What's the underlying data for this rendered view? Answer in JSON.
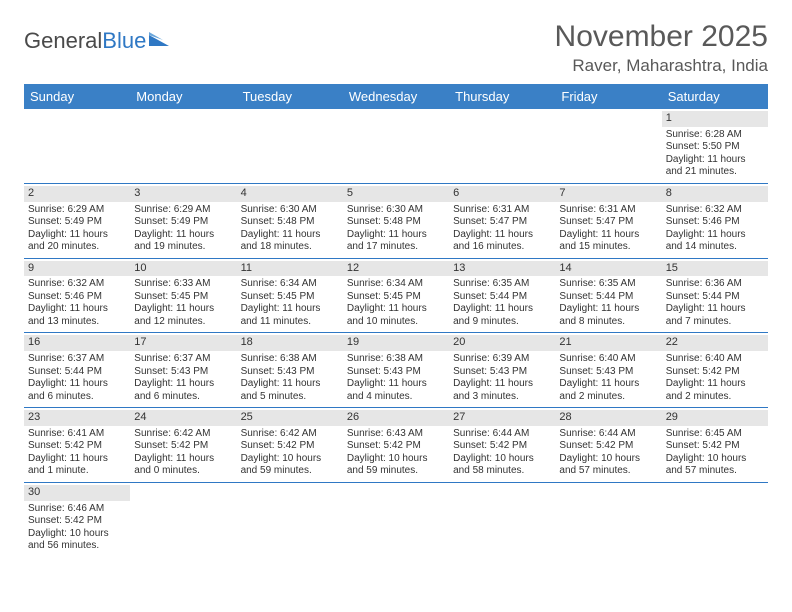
{
  "logo": {
    "text1": "General",
    "text2": "Blue"
  },
  "title": "November 2025",
  "location": "Raver, Maharashtra, India",
  "colors": {
    "header_bg": "#3a80c6",
    "header_text": "#ffffff",
    "daynum_bg": "#e6e6e6",
    "border": "#2f78c4",
    "title_color": "#595959"
  },
  "dayNames": [
    "Sunday",
    "Monday",
    "Tuesday",
    "Wednesday",
    "Thursday",
    "Friday",
    "Saturday"
  ],
  "weeks": [
    [
      null,
      null,
      null,
      null,
      null,
      null,
      {
        "n": "1",
        "sr": "Sunrise: 6:28 AM",
        "ss": "Sunset: 5:50 PM",
        "d1": "Daylight: 11 hours",
        "d2": "and 21 minutes."
      }
    ],
    [
      {
        "n": "2",
        "sr": "Sunrise: 6:29 AM",
        "ss": "Sunset: 5:49 PM",
        "d1": "Daylight: 11 hours",
        "d2": "and 20 minutes."
      },
      {
        "n": "3",
        "sr": "Sunrise: 6:29 AM",
        "ss": "Sunset: 5:49 PM",
        "d1": "Daylight: 11 hours",
        "d2": "and 19 minutes."
      },
      {
        "n": "4",
        "sr": "Sunrise: 6:30 AM",
        "ss": "Sunset: 5:48 PM",
        "d1": "Daylight: 11 hours",
        "d2": "and 18 minutes."
      },
      {
        "n": "5",
        "sr": "Sunrise: 6:30 AM",
        "ss": "Sunset: 5:48 PM",
        "d1": "Daylight: 11 hours",
        "d2": "and 17 minutes."
      },
      {
        "n": "6",
        "sr": "Sunrise: 6:31 AM",
        "ss": "Sunset: 5:47 PM",
        "d1": "Daylight: 11 hours",
        "d2": "and 16 minutes."
      },
      {
        "n": "7",
        "sr": "Sunrise: 6:31 AM",
        "ss": "Sunset: 5:47 PM",
        "d1": "Daylight: 11 hours",
        "d2": "and 15 minutes."
      },
      {
        "n": "8",
        "sr": "Sunrise: 6:32 AM",
        "ss": "Sunset: 5:46 PM",
        "d1": "Daylight: 11 hours",
        "d2": "and 14 minutes."
      }
    ],
    [
      {
        "n": "9",
        "sr": "Sunrise: 6:32 AM",
        "ss": "Sunset: 5:46 PM",
        "d1": "Daylight: 11 hours",
        "d2": "and 13 minutes."
      },
      {
        "n": "10",
        "sr": "Sunrise: 6:33 AM",
        "ss": "Sunset: 5:45 PM",
        "d1": "Daylight: 11 hours",
        "d2": "and 12 minutes."
      },
      {
        "n": "11",
        "sr": "Sunrise: 6:34 AM",
        "ss": "Sunset: 5:45 PM",
        "d1": "Daylight: 11 hours",
        "d2": "and 11 minutes."
      },
      {
        "n": "12",
        "sr": "Sunrise: 6:34 AM",
        "ss": "Sunset: 5:45 PM",
        "d1": "Daylight: 11 hours",
        "d2": "and 10 minutes."
      },
      {
        "n": "13",
        "sr": "Sunrise: 6:35 AM",
        "ss": "Sunset: 5:44 PM",
        "d1": "Daylight: 11 hours",
        "d2": "and 9 minutes."
      },
      {
        "n": "14",
        "sr": "Sunrise: 6:35 AM",
        "ss": "Sunset: 5:44 PM",
        "d1": "Daylight: 11 hours",
        "d2": "and 8 minutes."
      },
      {
        "n": "15",
        "sr": "Sunrise: 6:36 AM",
        "ss": "Sunset: 5:44 PM",
        "d1": "Daylight: 11 hours",
        "d2": "and 7 minutes."
      }
    ],
    [
      {
        "n": "16",
        "sr": "Sunrise: 6:37 AM",
        "ss": "Sunset: 5:44 PM",
        "d1": "Daylight: 11 hours",
        "d2": "and 6 minutes."
      },
      {
        "n": "17",
        "sr": "Sunrise: 6:37 AM",
        "ss": "Sunset: 5:43 PM",
        "d1": "Daylight: 11 hours",
        "d2": "and 6 minutes."
      },
      {
        "n": "18",
        "sr": "Sunrise: 6:38 AM",
        "ss": "Sunset: 5:43 PM",
        "d1": "Daylight: 11 hours",
        "d2": "and 5 minutes."
      },
      {
        "n": "19",
        "sr": "Sunrise: 6:38 AM",
        "ss": "Sunset: 5:43 PM",
        "d1": "Daylight: 11 hours",
        "d2": "and 4 minutes."
      },
      {
        "n": "20",
        "sr": "Sunrise: 6:39 AM",
        "ss": "Sunset: 5:43 PM",
        "d1": "Daylight: 11 hours",
        "d2": "and 3 minutes."
      },
      {
        "n": "21",
        "sr": "Sunrise: 6:40 AM",
        "ss": "Sunset: 5:43 PM",
        "d1": "Daylight: 11 hours",
        "d2": "and 2 minutes."
      },
      {
        "n": "22",
        "sr": "Sunrise: 6:40 AM",
        "ss": "Sunset: 5:42 PM",
        "d1": "Daylight: 11 hours",
        "d2": "and 2 minutes."
      }
    ],
    [
      {
        "n": "23",
        "sr": "Sunrise: 6:41 AM",
        "ss": "Sunset: 5:42 PM",
        "d1": "Daylight: 11 hours",
        "d2": "and 1 minute."
      },
      {
        "n": "24",
        "sr": "Sunrise: 6:42 AM",
        "ss": "Sunset: 5:42 PM",
        "d1": "Daylight: 11 hours",
        "d2": "and 0 minutes."
      },
      {
        "n": "25",
        "sr": "Sunrise: 6:42 AM",
        "ss": "Sunset: 5:42 PM",
        "d1": "Daylight: 10 hours",
        "d2": "and 59 minutes."
      },
      {
        "n": "26",
        "sr": "Sunrise: 6:43 AM",
        "ss": "Sunset: 5:42 PM",
        "d1": "Daylight: 10 hours",
        "d2": "and 59 minutes."
      },
      {
        "n": "27",
        "sr": "Sunrise: 6:44 AM",
        "ss": "Sunset: 5:42 PM",
        "d1": "Daylight: 10 hours",
        "d2": "and 58 minutes."
      },
      {
        "n": "28",
        "sr": "Sunrise: 6:44 AM",
        "ss": "Sunset: 5:42 PM",
        "d1": "Daylight: 10 hours",
        "d2": "and 57 minutes."
      },
      {
        "n": "29",
        "sr": "Sunrise: 6:45 AM",
        "ss": "Sunset: 5:42 PM",
        "d1": "Daylight: 10 hours",
        "d2": "and 57 minutes."
      }
    ],
    [
      {
        "n": "30",
        "sr": "Sunrise: 6:46 AM",
        "ss": "Sunset: 5:42 PM",
        "d1": "Daylight: 10 hours",
        "d2": "and 56 minutes."
      },
      null,
      null,
      null,
      null,
      null,
      null
    ]
  ]
}
